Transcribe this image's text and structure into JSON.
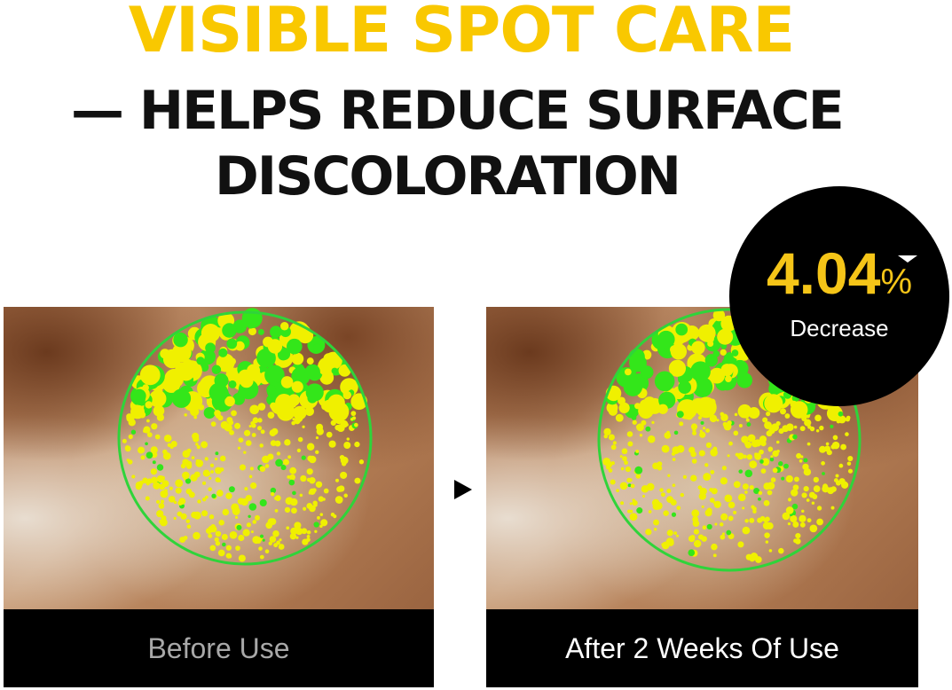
{
  "headline": {
    "line1": "VISIBLE SPOT CARE",
    "line2": "— HELPS REDUCE SURFACE",
    "line3": "DISCOLORATION"
  },
  "badge": {
    "value": "4.04",
    "unit": "%",
    "label": "Decrease",
    "direction_icon": "triangle-down-icon"
  },
  "panels": [
    {
      "caption": "Before Use",
      "caption_color": "#a8a8a8"
    },
    {
      "caption": "After 2 Weeks Of Use",
      "caption_color": "#ffffff"
    }
  ],
  "arrow_icon": "play-arrow-icon",
  "colors": {
    "accent_yellow": "#f9c800",
    "spot_green": "#33e61a",
    "spot_yellow": "#f0f000",
    "ring_green": "#2fd43a"
  }
}
